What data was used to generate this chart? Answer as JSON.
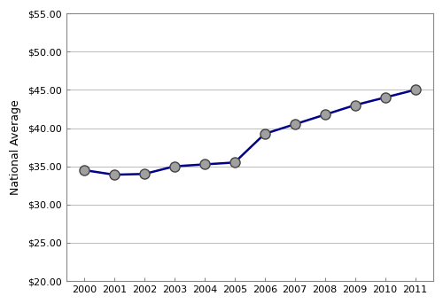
{
  "years": [
    2000,
    2001,
    2002,
    2003,
    2004,
    2005,
    2006,
    2007,
    2008,
    2009,
    2010,
    2011
  ],
  "values": [
    34.5,
    33.9,
    34.0,
    35.0,
    35.25,
    35.5,
    39.25,
    40.5,
    41.75,
    43.0,
    44.0,
    45.0
  ],
  "line_color": "#00008B",
  "marker_face_color": "#A0A0A0",
  "marker_edge_color": "#444444",
  "marker_size": 8,
  "line_width": 1.8,
  "ylabel": "National Average",
  "ylim": [
    20.0,
    55.0
  ],
  "ytick_step": 5.0,
  "xlim": [
    1999.4,
    2011.6
  ],
  "background_color": "#ffffff",
  "grid_color": "#bbbbbb",
  "ylabel_fontsize": 9,
  "tick_fontsize": 8,
  "spine_color": "#888888"
}
